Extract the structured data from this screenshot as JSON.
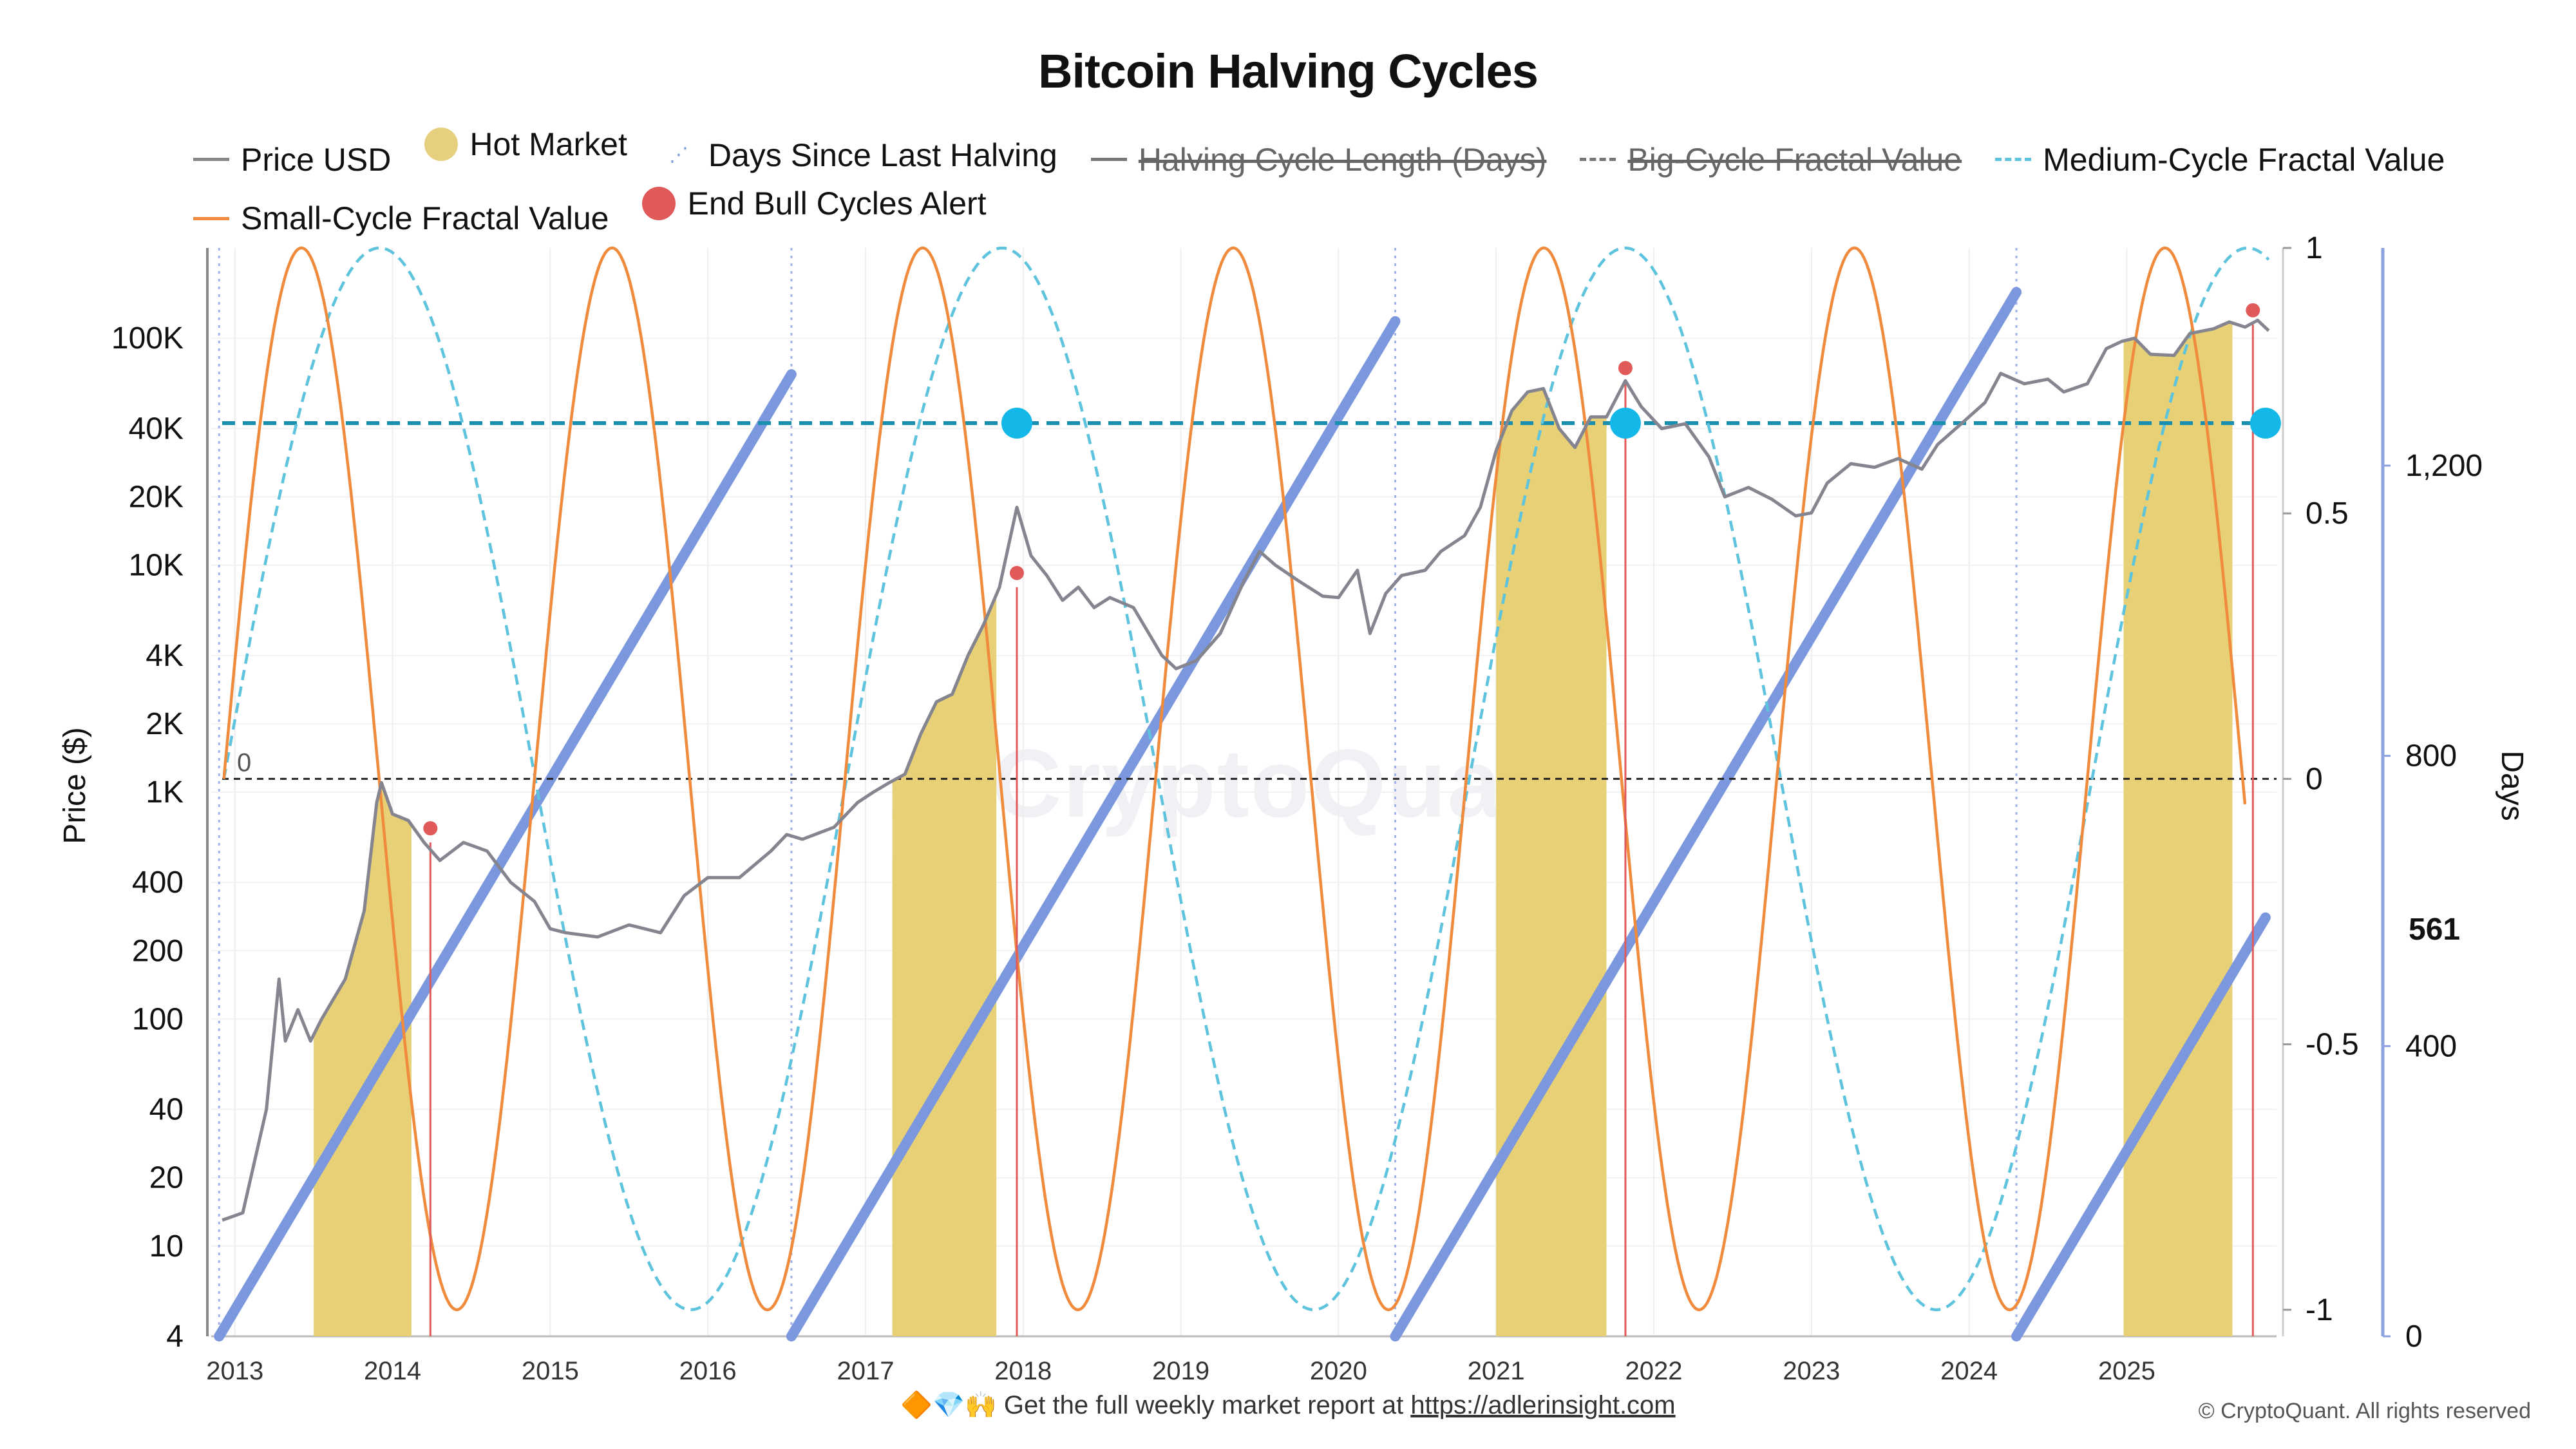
{
  "title": "Bitcoin Halving Cycles",
  "legend": [
    {
      "label": "Price USD",
      "kind": "line",
      "color": "#888888",
      "enabled": true
    },
    {
      "label": "Hot Market",
      "kind": "dot",
      "color": "#e6d07f",
      "enabled": true
    },
    {
      "label": "Days Since Last Halving",
      "kind": "tri",
      "color": "#7b9bd8",
      "enabled": true
    },
    {
      "label": "Halving Cycle Length (Days)",
      "kind": "line",
      "color": "#777777",
      "enabled": false
    },
    {
      "label": "Big-Cycle Fractal Value",
      "kind": "dashline",
      "color": "#777777",
      "enabled": false
    },
    {
      "label": "Medium-Cycle Fractal Value",
      "kind": "dash",
      "color": "#5ec3dc",
      "enabled": true
    },
    {
      "label": "Small-Cycle Fractal Value",
      "kind": "line",
      "color": "#f08a3c",
      "enabled": true
    },
    {
      "label": "End Bull Cycles Alert",
      "kind": "dot",
      "color": "#e05a5a",
      "enabled": true
    }
  ],
  "footer": {
    "icons": "🔶💎🙌",
    "text": "Get the full weekly market report at",
    "link": "https://adlerinsight.com"
  },
  "copyright": "© CryptoQuant. All rights reserved",
  "watermark": "CryptoQuant",
  "chart_data": {
    "type": "line",
    "x_range": [
      2012.85,
      2025.95
    ],
    "y_left": {
      "label": "Price ($)",
      "scale": "log",
      "range": [
        4,
        250000
      ],
      "ticks": [
        "4",
        "10",
        "20",
        "40",
        "100",
        "200",
        "400",
        "1K",
        "2K",
        "4K",
        "10K",
        "20K",
        "40K",
        "100K"
      ]
    },
    "y_fractal": {
      "range": [
        -1.05,
        1.0
      ],
      "ticks": [
        "1",
        "0.5",
        "0",
        "-0.5",
        "-1"
      ],
      "zero_label": "0"
    },
    "y_days": {
      "label": "Days",
      "range": [
        0,
        1500
      ],
      "ticks": [
        "1,200",
        "800",
        "400",
        "0"
      ],
      "current_label": "561"
    },
    "x_ticks": [
      "2013",
      "2014",
      "2015",
      "2016",
      "2017",
      "2018",
      "2019",
      "2020",
      "2021",
      "2022",
      "2023",
      "2024",
      "2025"
    ],
    "halvings": [
      2012.9,
      2016.53,
      2020.36,
      2024.3
    ],
    "hot_market": [
      [
        2013.5,
        2014.12
      ],
      [
        2017.17,
        2017.83
      ],
      [
        2021.0,
        2021.7
      ],
      [
        2024.98,
        2025.67
      ]
    ],
    "alerts": [
      {
        "x": 2014.24,
        "price": 600
      },
      {
        "x": 2017.96,
        "price": 8000
      },
      {
        "x": 2021.82,
        "price": 64000
      },
      {
        "x": 2025.8,
        "price": 115000
      }
    ],
    "blue_dots": [
      2017.96,
      2021.82,
      2025.88
    ],
    "threshold": 0.67,
    "price_series": [
      [
        2012.92,
        13
      ],
      [
        2013.05,
        14
      ],
      [
        2013.2,
        40
      ],
      [
        2013.28,
        150
      ],
      [
        2013.32,
        80
      ],
      [
        2013.4,
        110
      ],
      [
        2013.48,
        80
      ],
      [
        2013.55,
        100
      ],
      [
        2013.7,
        150
      ],
      [
        2013.82,
        300
      ],
      [
        2013.9,
        900
      ],
      [
        2013.93,
        1100
      ],
      [
        2014.0,
        800
      ],
      [
        2014.1,
        750
      ],
      [
        2014.2,
        600
      ],
      [
        2014.3,
        500
      ],
      [
        2014.45,
        600
      ],
      [
        2014.6,
        550
      ],
      [
        2014.75,
        400
      ],
      [
        2014.9,
        330
      ],
      [
        2015.0,
        250
      ],
      [
        2015.1,
        240
      ],
      [
        2015.3,
        230
      ],
      [
        2015.5,
        260
      ],
      [
        2015.7,
        240
      ],
      [
        2015.85,
        350
      ],
      [
        2016.0,
        420
      ],
      [
        2016.2,
        420
      ],
      [
        2016.4,
        550
      ],
      [
        2016.5,
        650
      ],
      [
        2016.6,
        620
      ],
      [
        2016.8,
        700
      ],
      [
        2016.95,
        900
      ],
      [
        2017.05,
        1000
      ],
      [
        2017.15,
        1100
      ],
      [
        2017.25,
        1200
      ],
      [
        2017.35,
        1800
      ],
      [
        2017.45,
        2500
      ],
      [
        2017.55,
        2700
      ],
      [
        2017.65,
        4000
      ],
      [
        2017.75,
        5500
      ],
      [
        2017.85,
        8000
      ],
      [
        2017.96,
        18000
      ],
      [
        2018.05,
        11000
      ],
      [
        2018.15,
        9000
      ],
      [
        2018.25,
        7000
      ],
      [
        2018.35,
        8000
      ],
      [
        2018.45,
        6500
      ],
      [
        2018.55,
        7200
      ],
      [
        2018.7,
        6500
      ],
      [
        2018.88,
        4000
      ],
      [
        2018.97,
        3500
      ],
      [
        2019.1,
        3800
      ],
      [
        2019.25,
        5000
      ],
      [
        2019.4,
        8500
      ],
      [
        2019.5,
        11500
      ],
      [
        2019.6,
        10000
      ],
      [
        2019.75,
        8500
      ],
      [
        2019.9,
        7300
      ],
      [
        2020.0,
        7200
      ],
      [
        2020.12,
        9500
      ],
      [
        2020.2,
        5000
      ],
      [
        2020.3,
        7500
      ],
      [
        2020.4,
        9000
      ],
      [
        2020.55,
        9500
      ],
      [
        2020.65,
        11500
      ],
      [
        2020.8,
        13500
      ],
      [
        2020.9,
        18000
      ],
      [
        2021.0,
        32000
      ],
      [
        2021.1,
        48000
      ],
      [
        2021.2,
        58000
      ],
      [
        2021.3,
        60000
      ],
      [
        2021.4,
        40000
      ],
      [
        2021.5,
        33000
      ],
      [
        2021.6,
        45000
      ],
      [
        2021.7,
        45000
      ],
      [
        2021.82,
        65000
      ],
      [
        2021.92,
        50000
      ],
      [
        2022.05,
        40000
      ],
      [
        2022.2,
        42000
      ],
      [
        2022.35,
        30000
      ],
      [
        2022.45,
        20000
      ],
      [
        2022.6,
        22000
      ],
      [
        2022.75,
        19500
      ],
      [
        2022.9,
        16500
      ],
      [
        2023.0,
        17000
      ],
      [
        2023.1,
        23000
      ],
      [
        2023.25,
        28000
      ],
      [
        2023.4,
        27000
      ],
      [
        2023.55,
        29500
      ],
      [
        2023.7,
        26500
      ],
      [
        2023.8,
        34000
      ],
      [
        2023.95,
        42000
      ],
      [
        2024.1,
        52000
      ],
      [
        2024.2,
        70000
      ],
      [
        2024.35,
        63000
      ],
      [
        2024.5,
        66000
      ],
      [
        2024.6,
        58000
      ],
      [
        2024.75,
        63000
      ],
      [
        2024.87,
        90000
      ],
      [
        2024.97,
        97000
      ],
      [
        2025.05,
        100000
      ],
      [
        2025.15,
        85000
      ],
      [
        2025.3,
        84000
      ],
      [
        2025.4,
        105000
      ],
      [
        2025.55,
        110000
      ],
      [
        2025.65,
        118000
      ],
      [
        2025.75,
        112000
      ],
      [
        2025.83,
        120000
      ],
      [
        2025.9,
        108000
      ]
    ]
  }
}
